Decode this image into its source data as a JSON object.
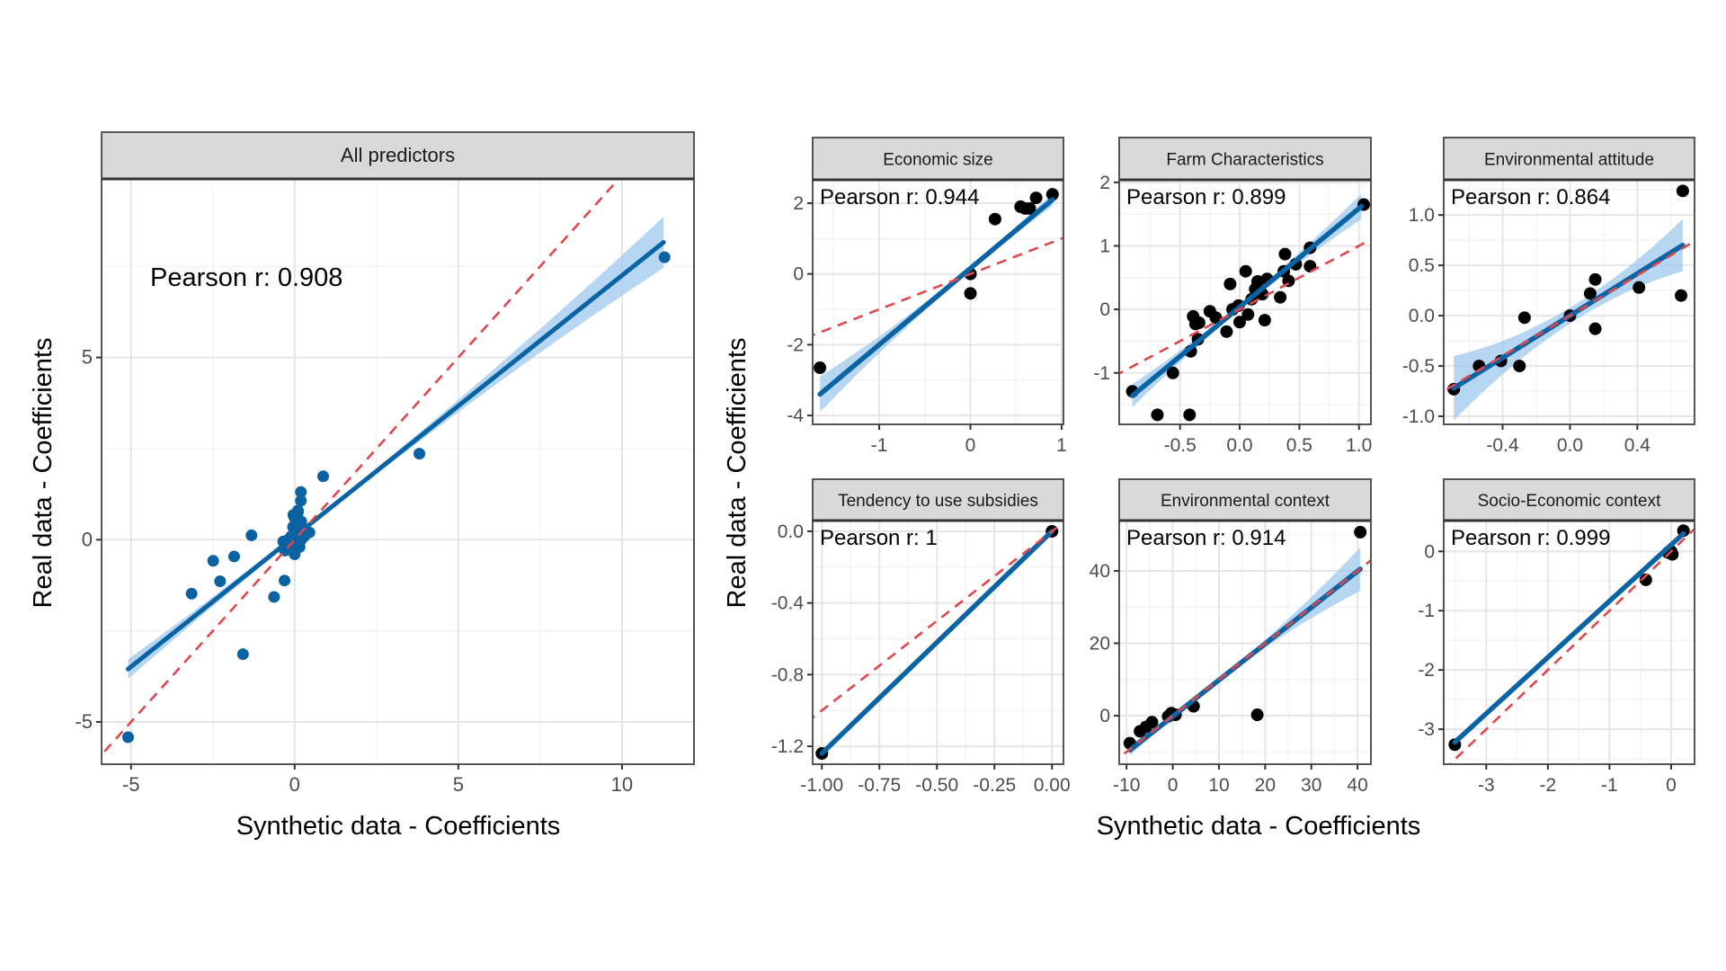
{
  "chart_data": {
    "type": "scatter",
    "xlabel": "Synthetic data - Coefficients",
    "ylabel": "Real data - Coefficients",
    "reference_line": "y = x (dashed)",
    "colors": {
      "fit": "#0a63a3",
      "band": "#9ec8ee",
      "identity": "#e0474c",
      "point_all": "#0a62a0",
      "point_group": "#000000",
      "strip": "#d9d9d9"
    },
    "panels": [
      {
        "title": "All predictors",
        "pearson": "Pearson r: 0.908",
        "xlim": [
          -5.9,
          12.2
        ],
        "ylim": [
          -6.16,
          9.9
        ],
        "xticks": [
          "-5",
          "0",
          "5",
          "10"
        ],
        "yticks": [
          "-5",
          "0",
          "5"
        ],
        "fit": {
          "x": [
            -5.09,
            11.27
          ],
          "y": [
            -3.55,
            8.16
          ]
        },
        "ci_halfwidth": [
          0.27,
          0.1,
          0.7
        ],
        "points": [
          [
            -5.09,
            -5.42
          ],
          [
            -3.15,
            -1.48
          ],
          [
            -2.49,
            -0.58
          ],
          [
            -1.85,
            -0.46
          ],
          [
            -2.28,
            -1.14
          ],
          [
            -1.32,
            0.12
          ],
          [
            -1.58,
            -3.14
          ],
          [
            -0.63,
            -1.57
          ],
          [
            -0.31,
            -1.12
          ],
          [
            0.87,
            1.74
          ],
          [
            3.81,
            2.36
          ],
          [
            11.3,
            7.75
          ],
          [
            0.19,
            1.31
          ],
          [
            0.19,
            1.07
          ],
          [
            0.1,
            0.8
          ],
          [
            -0.04,
            0.68
          ],
          [
            0.1,
            0.75
          ],
          [
            0.0,
            0.6
          ],
          [
            0.2,
            0.5
          ],
          [
            -0.05,
            0.35
          ],
          [
            0.25,
            0.3
          ],
          [
            0.45,
            0.2
          ],
          [
            0.3,
            0.1
          ],
          [
            0.1,
            0.2
          ],
          [
            -0.1,
            0.1
          ],
          [
            0.05,
            -0.05
          ],
          [
            -0.35,
            -0.05
          ],
          [
            -0.15,
            -0.15
          ],
          [
            0.15,
            -0.2
          ],
          [
            -0.3,
            -0.3
          ],
          [
            0.0,
            -0.4
          ],
          [
            0.1,
            0.4
          ],
          [
            0.2,
            0.0
          ],
          [
            -0.2,
            0.0
          ]
        ]
      },
      {
        "title": "Economic size",
        "pearson": "Pearson r: 0.944",
        "xlim": [
          -1.73,
          1.02
        ],
        "ylim": [
          -4.25,
          2.66
        ],
        "xticks": [
          "-1",
          "0",
          "1"
        ],
        "yticks": [
          "-4",
          "-2",
          "0",
          "2"
        ],
        "fit": {
          "x": [
            -1.65,
            0.9
          ],
          "y": [
            -3.4,
            2.1
          ]
        },
        "ci_halfwidth": [
          0.5,
          0.1,
          0.18
        ],
        "points": [
          [
            -1.65,
            -2.65
          ],
          [
            0,
            0
          ],
          [
            0,
            -0.55
          ],
          [
            0.27,
            1.55
          ],
          [
            0.55,
            1.9
          ],
          [
            0.6,
            1.85
          ],
          [
            0.65,
            1.85
          ],
          [
            0.72,
            2.15
          ],
          [
            0.9,
            2.25
          ]
        ]
      },
      {
        "title": "Farm Characteristics",
        "pearson": "Pearson r: 0.899",
        "xlim": [
          -1.01,
          1.1
        ],
        "ylim": [
          -1.81,
          2.04
        ],
        "xticks": [
          "-0.5",
          "0.0",
          "0.5",
          "1.0"
        ],
        "yticks": [
          "-1",
          "0",
          "1",
          "2"
        ],
        "fit": {
          "x": [
            -0.9,
            1.02
          ],
          "y": [
            -1.36,
            1.62
          ]
        },
        "ci_halfwidth": [
          0.18,
          0.05,
          0.2
        ],
        "points": [
          [
            -0.9,
            -1.29
          ],
          [
            -0.69,
            -1.66
          ],
          [
            -0.42,
            -1.66
          ],
          [
            -0.56,
            -1.0
          ],
          [
            -0.41,
            -0.66
          ],
          [
            -0.35,
            -0.47
          ],
          [
            -0.39,
            -0.11
          ],
          [
            -0.37,
            -0.23
          ],
          [
            -0.34,
            -0.21
          ],
          [
            -0.25,
            -0.03
          ],
          [
            -0.2,
            -0.13
          ],
          [
            -0.11,
            -0.35
          ],
          [
            -0.08,
            0.4
          ],
          [
            -0.06,
            0.0
          ],
          [
            -0.01,
            0.06
          ],
          [
            0.0,
            -0.2
          ],
          [
            0.05,
            0.6
          ],
          [
            0.07,
            -0.08
          ],
          [
            0.1,
            0.16
          ],
          [
            0.13,
            0.32
          ],
          [
            0.15,
            0.44
          ],
          [
            0.19,
            0.24
          ],
          [
            0.21,
            -0.17
          ],
          [
            0.23,
            0.48
          ],
          [
            0.34,
            0.19
          ],
          [
            0.37,
            0.6
          ],
          [
            0.38,
            0.87
          ],
          [
            0.41,
            0.45
          ],
          [
            0.47,
            0.71
          ],
          [
            0.59,
            0.97
          ],
          [
            0.59,
            0.68
          ],
          [
            1.04,
            1.65
          ]
        ]
      },
      {
        "title": "Environmental attitude",
        "pearson": "Pearson r: 0.864",
        "xlim": [
          -0.75,
          0.74
        ],
        "ylim": [
          -1.08,
          1.35
        ],
        "xticks": [
          "-0.4",
          "0.0",
          "0.4"
        ],
        "yticks": [
          "-1.0",
          "-0.5",
          "0.0",
          "0.5",
          "1.0"
        ],
        "fit": {
          "x": [
            -0.69,
            0.67
          ],
          "y": [
            -0.72,
            0.7
          ]
        },
        "ci_halfwidth": [
          0.32,
          0.08,
          0.26
        ],
        "points": [
          [
            -0.69,
            -0.73
          ],
          [
            -0.54,
            -0.5
          ],
          [
            -0.41,
            -0.45
          ],
          [
            -0.3,
            -0.5
          ],
          [
            -0.27,
            -0.02
          ],
          [
            0.0,
            0.0
          ],
          [
            0.12,
            0.22
          ],
          [
            0.15,
            0.36
          ],
          [
            0.15,
            -0.13
          ],
          [
            0.41,
            0.28
          ],
          [
            0.66,
            0.2
          ],
          [
            0.67,
            1.24
          ]
        ]
      },
      {
        "title": "Tendency to use subsidies",
        "pearson": "Pearson r: 1",
        "xlim": [
          -1.04,
          0.05
        ],
        "ylim": [
          -1.3,
          0.06
        ],
        "xticks": [
          "-1.00",
          "-0.75",
          "-0.50",
          "-0.25",
          "0.00"
        ],
        "yticks": [
          "-1.2",
          "-0.8",
          "-0.4",
          "0.0"
        ],
        "fit": {
          "x": [
            -1,
            0
          ],
          "y": [
            -1.24,
            0
          ]
        },
        "ci_halfwidth": [
          0.005,
          0.002,
          0.005
        ],
        "points": [
          [
            -1,
            -1.24
          ],
          [
            0,
            0
          ]
        ]
      },
      {
        "title": "Environmental context",
        "pearson": "Pearson r: 0.914",
        "xlim": [
          -11.6,
          42.9
        ],
        "ylim": [
          -13.4,
          53.9
        ],
        "xticks": [
          "-10",
          "0",
          "10",
          "20",
          "30",
          "40"
        ],
        "yticks": [
          "0",
          "20",
          "40"
        ],
        "fit": {
          "x": [
            -9.3,
            40.6
          ],
          "y": [
            -9.5,
            40.5
          ]
        },
        "ci_halfwidth": [
          1.5,
          0.6,
          6
        ],
        "points": [
          [
            -9.3,
            -7.6
          ],
          [
            -7.1,
            -4.3
          ],
          [
            -5.8,
            -3.1
          ],
          [
            -4.5,
            -1.8
          ],
          [
            -1.0,
            -0.2
          ],
          [
            -0.3,
            0.7
          ],
          [
            0.6,
            0.25
          ],
          [
            4.5,
            2.6
          ],
          [
            18.3,
            0.25
          ],
          [
            40.6,
            50.7
          ]
        ]
      },
      {
        "title": "Socio-Economic context",
        "pearson": "Pearson r: 0.999",
        "xlim": [
          -3.69,
          0.38
        ],
        "ylim": [
          -3.59,
          0.52
        ],
        "xticks": [
          "-3",
          "-2",
          "-1",
          "0"
        ],
        "yticks": [
          "-3",
          "-2",
          "-1",
          "0"
        ],
        "fit": {
          "x": [
            -3.51,
            0.2
          ],
          "y": [
            -3.22,
            0.3
          ]
        },
        "ci_halfwidth": [
          0.06,
          0.02,
          0.04
        ],
        "points": [
          [
            -3.51,
            -3.26
          ],
          [
            -0.41,
            -0.48
          ],
          [
            0,
            0
          ],
          [
            0.02,
            -0.05
          ],
          [
            -0.05,
            -0.02
          ],
          [
            0.2,
            0.35
          ]
        ]
      }
    ]
  }
}
